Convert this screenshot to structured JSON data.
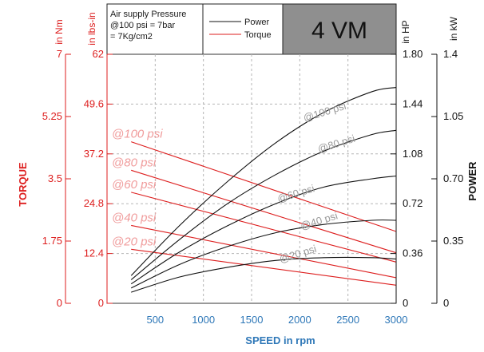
{
  "chart_data": {
    "type": "line",
    "model": "4 VM",
    "legend": {
      "note": [
        "Air supply Pressure",
        "@100 psi = 7bar",
        "= 7Kg/cm2"
      ],
      "power_label": "Power",
      "torque_label": "Torque"
    },
    "colors": {
      "power": "#111111",
      "torque": "#dd1e1e",
      "torque_label": "#f09c9c",
      "power_label": "#9b9b9b",
      "x_tick": "#2f78b8",
      "model_box": "#8f8f8f"
    },
    "x_axis": {
      "title": "SPEED in rpm",
      "range": [
        0,
        3000
      ],
      "ticks": [
        "500",
        "1000",
        "1500",
        "2000",
        "2500",
        "3000"
      ]
    },
    "axes": {
      "torque_nm": {
        "unit": "in Nm",
        "range": [
          0,
          7
        ],
        "ticks": [
          "0",
          "1.75",
          "3.5",
          "5.25",
          "7"
        ]
      },
      "torque_lbsin": {
        "unit": "in lbs-in",
        "range": [
          0,
          62
        ],
        "ticks": [
          "0",
          "12.4",
          "24.8",
          "37.2",
          "49.6",
          "62"
        ]
      },
      "power_hp": {
        "unit": "in HP",
        "range": [
          0,
          1.8
        ],
        "ticks": [
          "0",
          "0.36",
          "0.72",
          "1.08",
          "1.44",
          "1.80"
        ]
      },
      "power_kw": {
        "unit": "in kW",
        "range": [
          0,
          1.4
        ],
        "ticks": [
          "0",
          "0.35",
          "0.70",
          "1.05",
          "1.4"
        ]
      }
    },
    "left_title": "TORQUE",
    "right_title": "POWER",
    "grid": true,
    "torque_series": [
      {
        "name": "@100 psi",
        "x": [
          250,
          3000
        ],
        "y": [
          4.54,
          2.02
        ]
      },
      {
        "name": "@80 psi",
        "x": [
          250,
          3000
        ],
        "y": [
          3.74,
          1.42
        ]
      },
      {
        "name": "@60 psi",
        "x": [
          250,
          3000
        ],
        "y": [
          3.12,
          1.16
        ]
      },
      {
        "name": "@40 psi",
        "x": [
          250,
          3000
        ],
        "y": [
          2.19,
          0.72
        ]
      },
      {
        "name": "@20 psi",
        "x": [
          250,
          3000
        ],
        "y": [
          1.52,
          0.51
        ]
      }
    ],
    "power_series": [
      {
        "name": "@100 psi",
        "x": [
          250,
          750,
          1250,
          1750,
          2250,
          2750,
          3000
        ],
        "y": [
          0.2,
          0.56,
          0.88,
          1.16,
          1.38,
          1.53,
          1.56
        ]
      },
      {
        "name": "@80 psi",
        "x": [
          250,
          750,
          1250,
          1750,
          2250,
          2750,
          3000
        ],
        "y": [
          0.17,
          0.46,
          0.72,
          0.93,
          1.1,
          1.22,
          1.25
        ]
      },
      {
        "name": "@60 psi",
        "x": [
          250,
          750,
          1250,
          1750,
          2250,
          2750,
          3000
        ],
        "y": [
          0.14,
          0.37,
          0.56,
          0.72,
          0.84,
          0.9,
          0.92
        ]
      },
      {
        "name": "@40 psi",
        "x": [
          250,
          750,
          1250,
          1750,
          2250,
          2750,
          3000
        ],
        "y": [
          0.11,
          0.28,
          0.41,
          0.51,
          0.57,
          0.6,
          0.6
        ]
      },
      {
        "name": "@20 psi",
        "x": [
          250,
          750,
          1250,
          1750,
          2250,
          2750,
          3000
        ],
        "y": [
          0.08,
          0.19,
          0.26,
          0.31,
          0.33,
          0.33,
          0.32
        ]
      }
    ]
  }
}
